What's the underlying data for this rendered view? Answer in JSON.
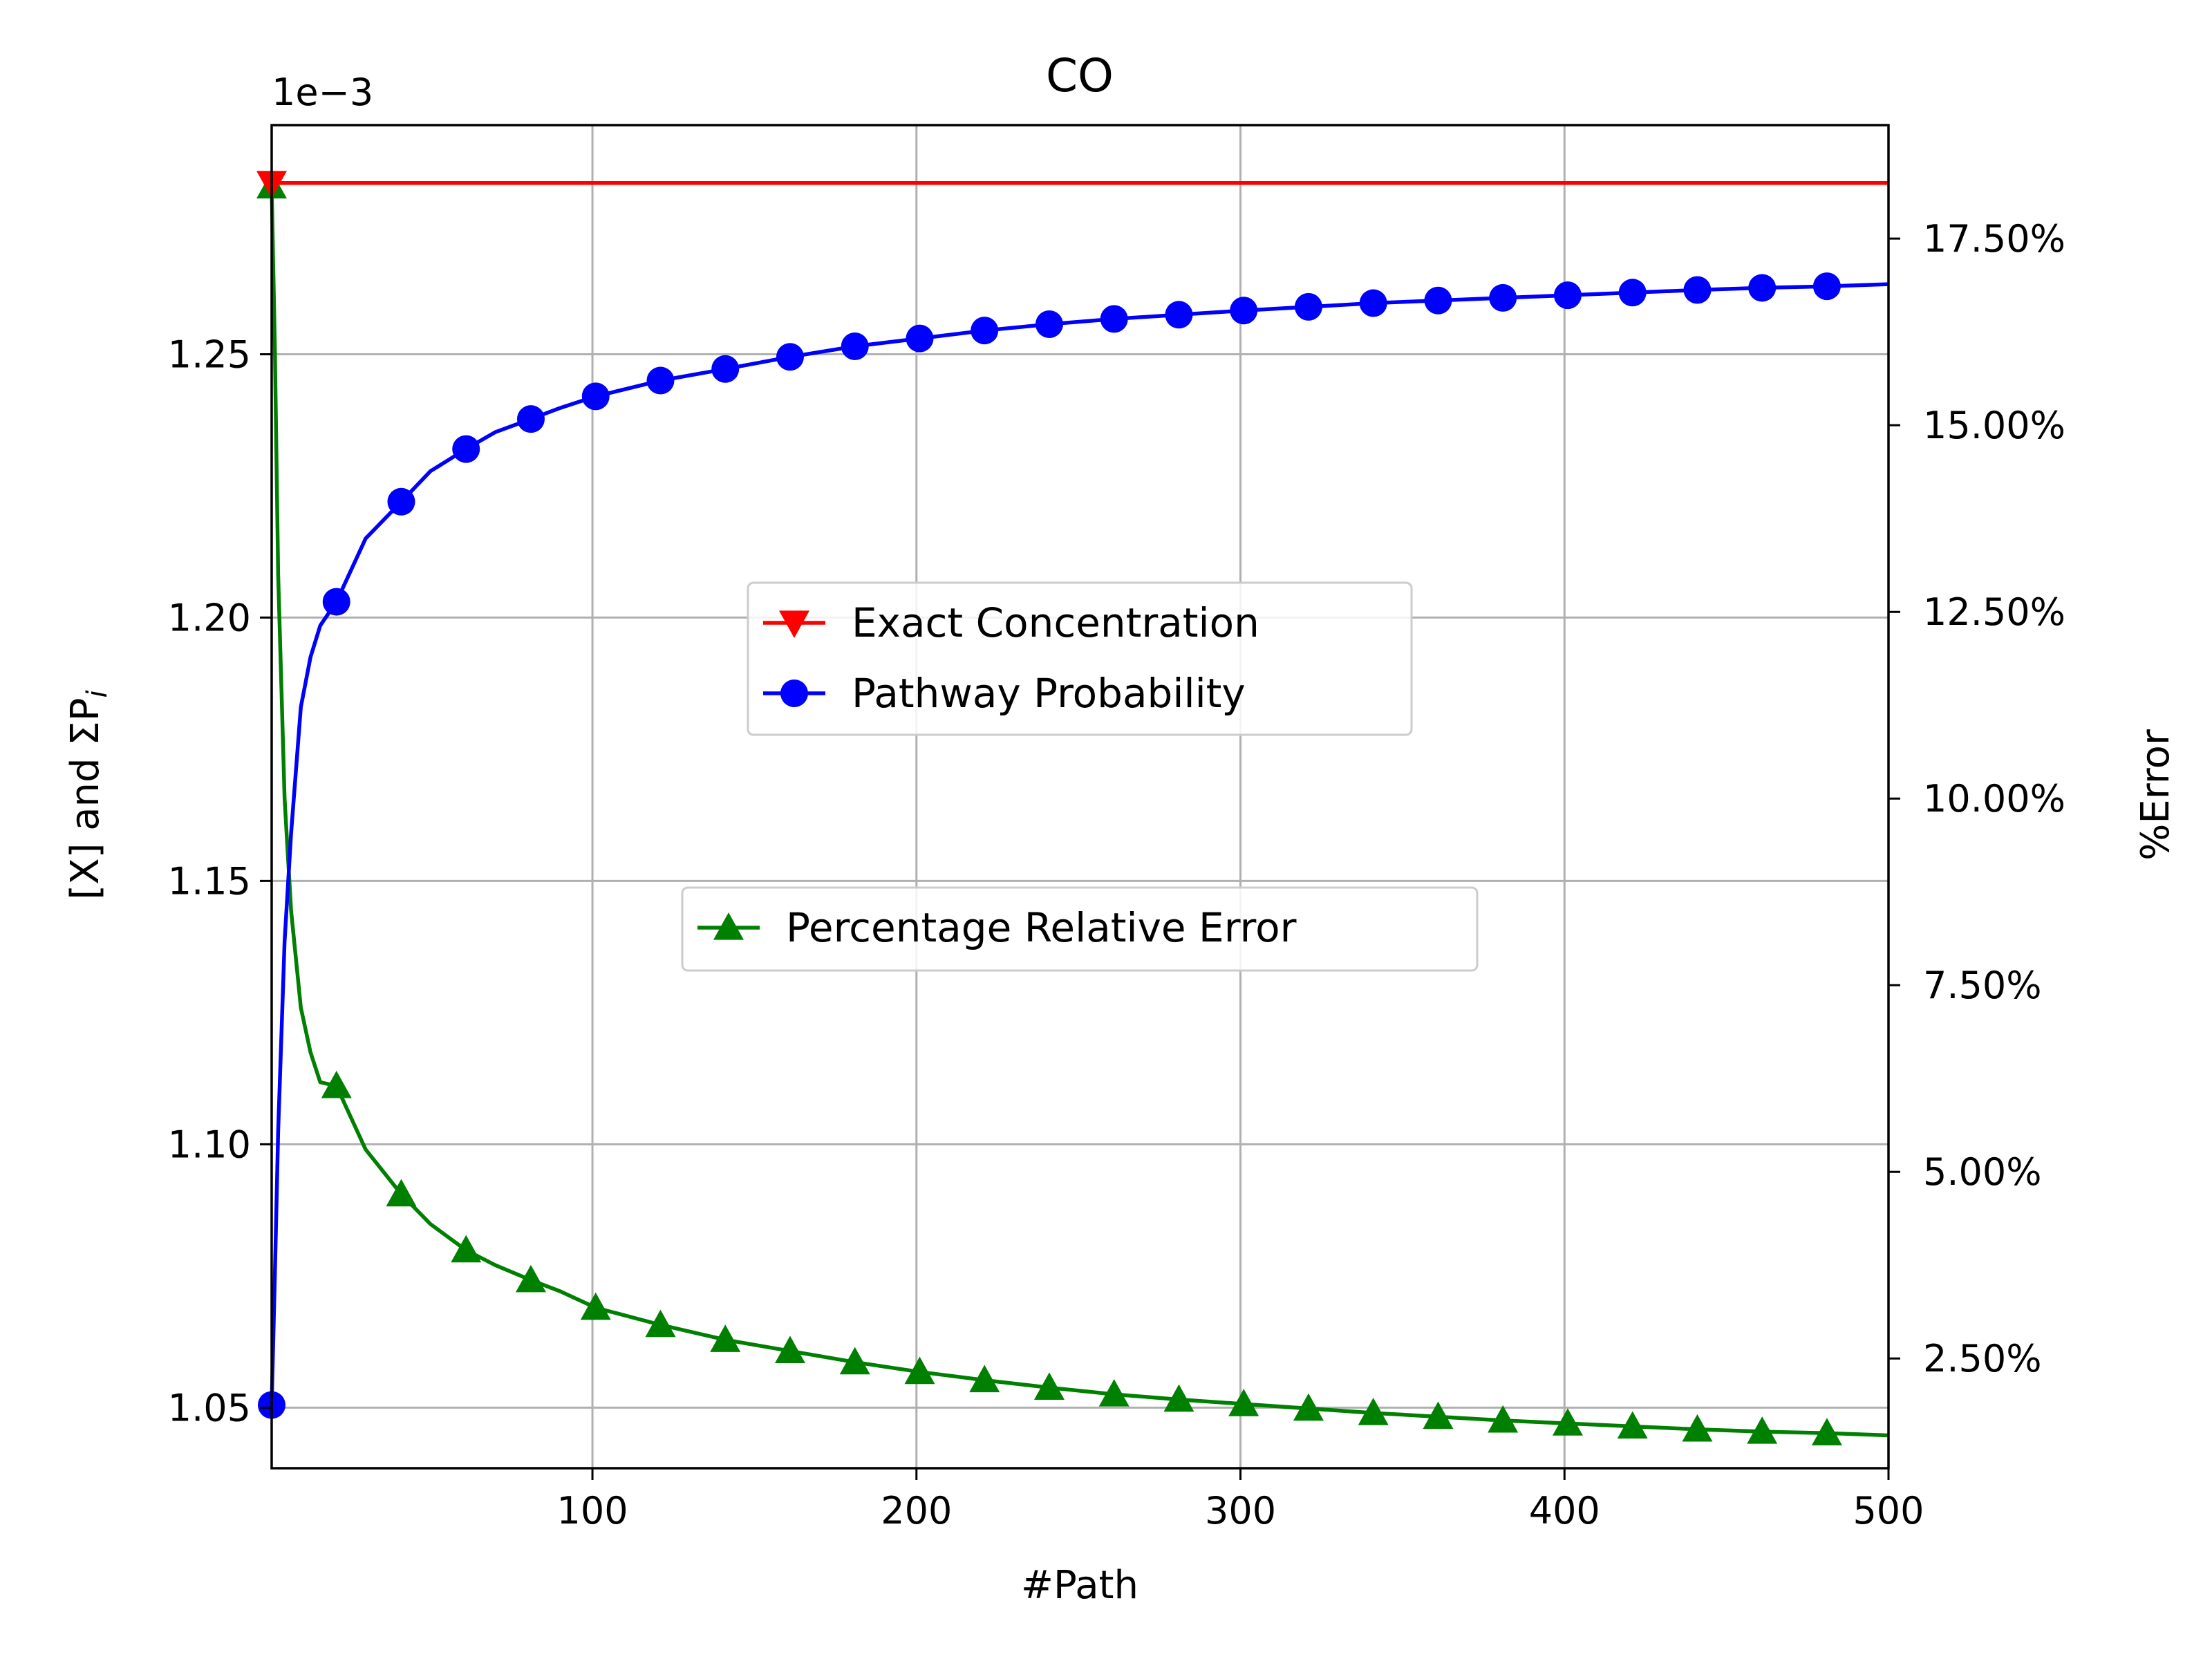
{
  "chart_data": {
    "type": "line",
    "title": "CO",
    "xlabel": "#Path",
    "ylabel": "[X] and ΣP",
    "ylabel_subscript": "i",
    "y2label": "%Error",
    "y_offset_label": "1e−3",
    "xlim": [
      1,
      500
    ],
    "ylim": [
      1.0385,
      1.2935
    ],
    "y2lim": [
      0.0103,
      0.1902
    ],
    "grid": true,
    "x_ticks": [
      100,
      200,
      300,
      400,
      500
    ],
    "x_tick_labels": [
      "100",
      "200",
      "300",
      "400",
      "500"
    ],
    "y_ticks": [
      1.05,
      1.1,
      1.15,
      1.2,
      1.25
    ],
    "y_tick_labels": [
      "1.05",
      "1.10",
      "1.15",
      "1.20",
      "1.25"
    ],
    "y2_ticks": [
      0.025,
      0.05,
      0.075,
      0.1,
      0.125,
      0.15,
      0.175
    ],
    "y2_tick_labels": [
      "2.50%",
      "5.00%",
      "7.50%",
      "10.00%",
      "12.50%",
      "15.00%",
      "17.50%"
    ],
    "series": [
      {
        "name": "Exact Concentration",
        "axis": "left",
        "color": "#ff0000",
        "marker": "triangle-down",
        "x": [
          1,
          500
        ],
        "y": [
          1.2825,
          1.2825
        ],
        "marker_x": [
          1
        ]
      },
      {
        "name": "Pathway Probability",
        "axis": "left",
        "color": "#0000ff",
        "marker": "circle",
        "x": [
          1,
          2,
          3,
          5,
          7,
          10,
          13,
          16,
          21,
          30,
          41,
          50,
          61,
          70,
          81,
          90,
          101,
          121,
          141,
          161,
          181,
          201,
          221,
          241,
          261,
          281,
          301,
          321,
          341,
          361,
          381,
          401,
          421,
          441,
          461,
          481,
          500
        ],
        "y": [
          1.0505,
          1.0755,
          1.1025,
          1.1385,
          1.159,
          1.183,
          1.1925,
          1.1985,
          1.203,
          1.215,
          1.222,
          1.2278,
          1.232,
          1.2352,
          1.2377,
          1.2398,
          1.242,
          1.245,
          1.2472,
          1.2495,
          1.2515,
          1.253,
          1.2545,
          1.2557,
          1.2567,
          1.2575,
          1.2583,
          1.259,
          1.2597,
          1.2602,
          1.2607,
          1.2612,
          1.2617,
          1.2622,
          1.2626,
          1.2629,
          1.2633
        ],
        "marker_x": [
          1,
          21,
          41,
          61,
          81,
          101,
          121,
          141,
          161,
          181,
          201,
          221,
          241,
          261,
          281,
          301,
          321,
          341,
          361,
          381,
          401,
          421,
          441,
          461,
          481
        ]
      },
      {
        "name": "Percentage Relative Error",
        "axis": "right",
        "color": "#008000",
        "marker": "triangle-up",
        "x": [
          1,
          2,
          3,
          5,
          7,
          10,
          13,
          16,
          21,
          30,
          41,
          50,
          61,
          70,
          81,
          90,
          101,
          121,
          141,
          161,
          181,
          201,
          221,
          241,
          261,
          281,
          301,
          321,
          341,
          361,
          381,
          401,
          421,
          441,
          461,
          481,
          500
        ],
        "y": [
          0.182,
          0.16,
          0.13,
          0.1,
          0.085,
          0.072,
          0.066,
          0.062,
          0.0615,
          0.053,
          0.047,
          0.043,
          0.0395,
          0.0375,
          0.0355,
          0.034,
          0.0318,
          0.0295,
          0.0275,
          0.026,
          0.0245,
          0.0232,
          0.0221,
          0.0211,
          0.0202,
          0.0195,
          0.0189,
          0.0183,
          0.0177,
          0.0172,
          0.0167,
          0.0163,
          0.0159,
          0.0155,
          0.0152,
          0.015,
          0.0147
        ],
        "marker_x": [
          1,
          21,
          41,
          61,
          81,
          101,
          121,
          141,
          161,
          181,
          201,
          221,
          241,
          261,
          281,
          301,
          321,
          341,
          361,
          381,
          401,
          421,
          441,
          461,
          481
        ]
      }
    ],
    "legends": [
      {
        "placement": "upper-center",
        "entries": [
          "Exact Concentration",
          "Pathway Probability"
        ]
      },
      {
        "placement": "center",
        "entries": [
          "Percentage Relative Error"
        ]
      }
    ]
  }
}
